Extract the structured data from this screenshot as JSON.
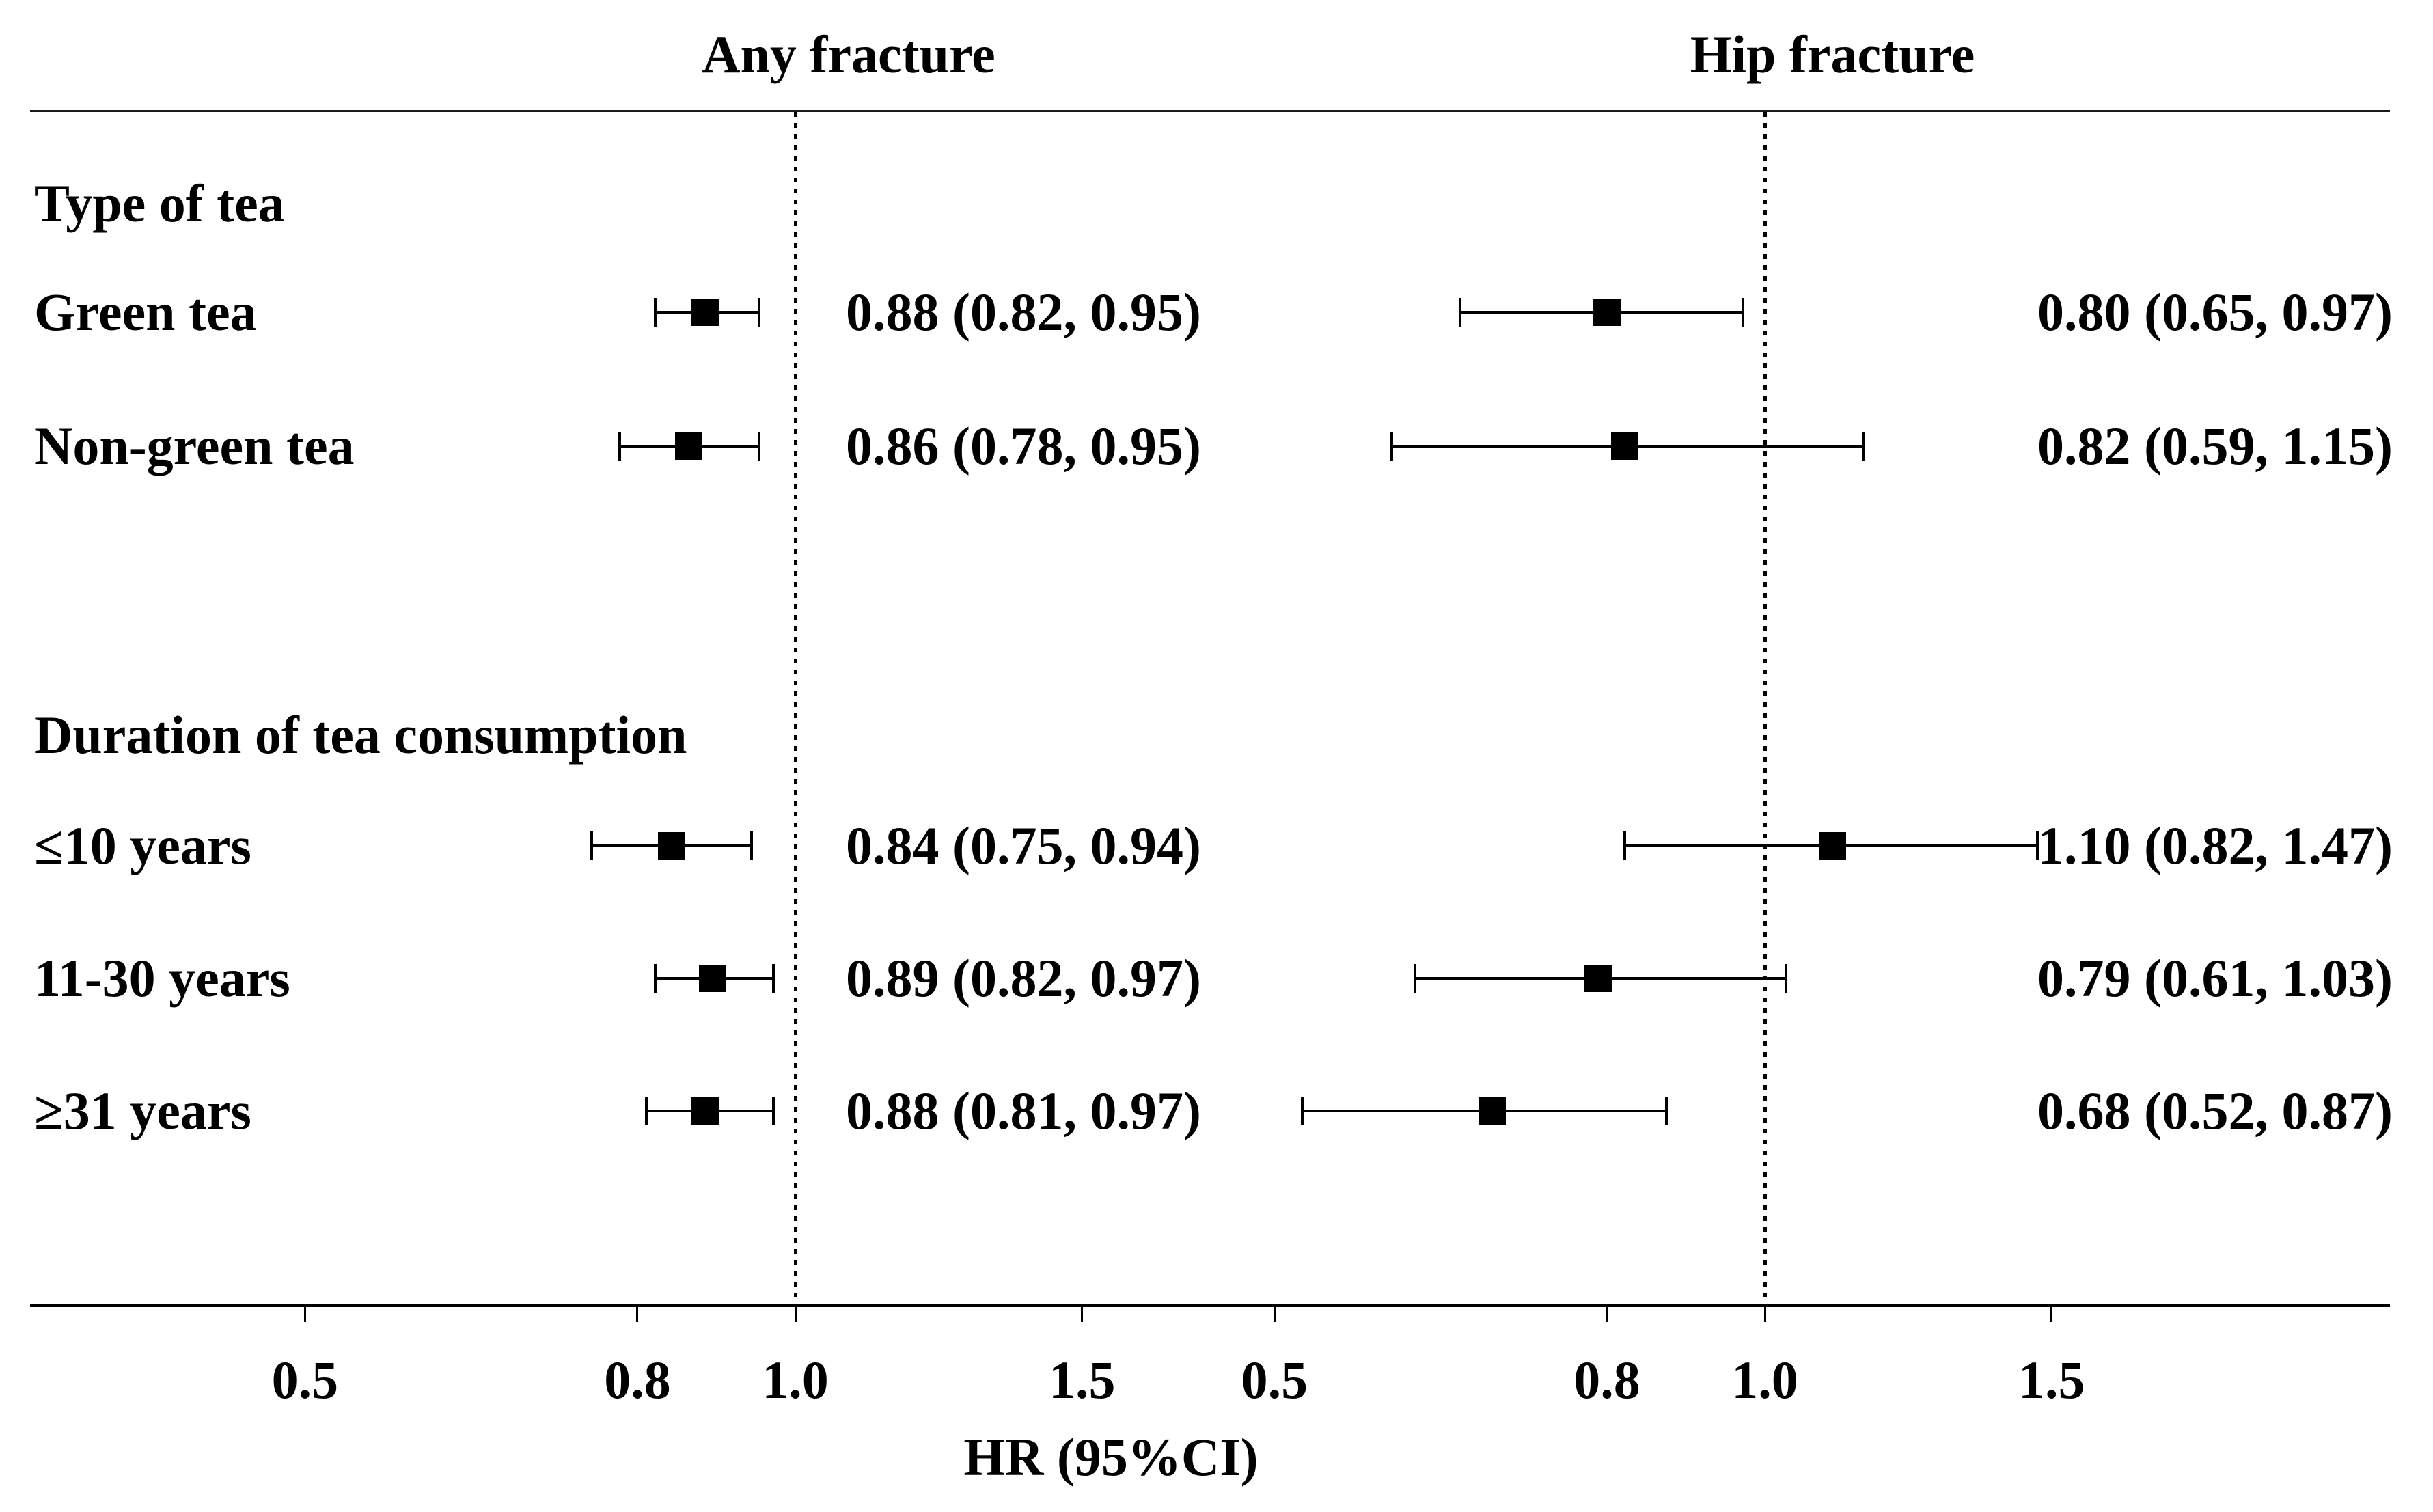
{
  "chart_data": {
    "type": "forest",
    "scale": "log",
    "xlabel": "HR (95%CI)",
    "reference_value": 1.0,
    "axis_tick_values": [
      0.5,
      0.8,
      1.0,
      1.5
    ],
    "axis_tick_labels": [
      "0.5",
      "0.8",
      "1.0",
      "1.5"
    ],
    "legend_position": "none",
    "grid": false,
    "marker_color": "#000000",
    "background_color": "#ffffff",
    "panels": [
      {
        "key": "any",
        "title": "Any fracture"
      },
      {
        "key": "hip",
        "title": "Hip fracture"
      }
    ],
    "sections": [
      {
        "header": "Type of tea",
        "rows": [
          {
            "label": "Green tea",
            "any": {
              "hr": 0.88,
              "lo": 0.82,
              "hi": 0.95,
              "text": "0.88 (0.82, 0.95)"
            },
            "hip": {
              "hr": 0.8,
              "lo": 0.65,
              "hi": 0.97,
              "text": "0.80 (0.65, 0.97)"
            }
          },
          {
            "label": "Non-green tea",
            "any": {
              "hr": 0.86,
              "lo": 0.78,
              "hi": 0.95,
              "text": "0.86 (0.78, 0.95)"
            },
            "hip": {
              "hr": 0.82,
              "lo": 0.59,
              "hi": 1.15,
              "text": "0.82 (0.59, 1.15)"
            }
          }
        ]
      },
      {
        "header": "Duration of tea consumption",
        "rows": [
          {
            "label": "≤10 years",
            "any": {
              "hr": 0.84,
              "lo": 0.75,
              "hi": 0.94,
              "text": "0.84 (0.75, 0.94)"
            },
            "hip": {
              "hr": 1.1,
              "lo": 0.82,
              "hi": 1.47,
              "text": "1.10 (0.82, 1.47)"
            }
          },
          {
            "label": "11-30 years",
            "any": {
              "hr": 0.89,
              "lo": 0.82,
              "hi": 0.97,
              "text": "0.89 (0.82, 0.97)"
            },
            "hip": {
              "hr": 0.79,
              "lo": 0.61,
              "hi": 1.03,
              "text": "0.79 (0.61, 1.03)"
            }
          },
          {
            "label": "≥31 years",
            "any": {
              "hr": 0.88,
              "lo": 0.81,
              "hi": 0.97,
              "text": "0.88 (0.81, 0.97)"
            },
            "hip": {
              "hr": 0.68,
              "lo": 0.52,
              "hi": 0.87,
              "text": "0.68 (0.52, 0.87)"
            }
          }
        ]
      }
    ]
  }
}
